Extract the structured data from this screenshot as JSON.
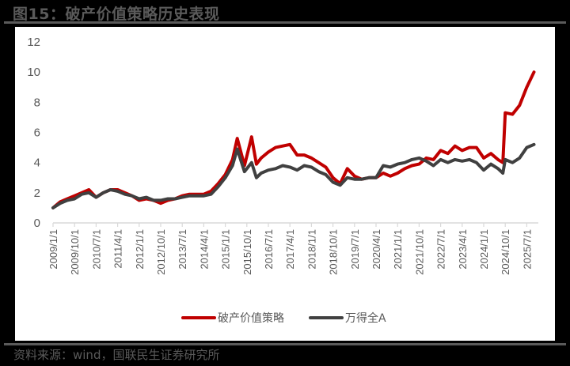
{
  "title": "图15：破产价值策略历史表现",
  "source": "资料来源：wind，国联民生证券研究所",
  "chart_data": {
    "type": "line",
    "title": "图15：破产价值策略历史表现",
    "xlabel": "",
    "ylabel": "",
    "ylim": [
      0,
      12
    ],
    "yticks": [
      0,
      2,
      4,
      6,
      8,
      10,
      12
    ],
    "grid": false,
    "legend_position": "bottom",
    "x_tick_labels": [
      "2009/1/1",
      "2009/10/1",
      "2010/7/1",
      "2011/4/1",
      "2012/1/1",
      "2012/10/1",
      "2013/7/1",
      "2014/4/1",
      "2015/1/1",
      "2015/10/1",
      "2016/7/1",
      "2017/4/1",
      "2018/1/1",
      "2018/10/1",
      "2019/7/1",
      "2020/4/1",
      "2021/1/1",
      "2021/10/1",
      "2022/7/1",
      "2023/4/1",
      "2024/1/1",
      "2024/10/1",
      "2025/7/1"
    ],
    "x": [
      "2009/1",
      "2009/4",
      "2009/7",
      "2009/10",
      "2010/1",
      "2010/4",
      "2010/7",
      "2010/10",
      "2011/1",
      "2011/4",
      "2011/7",
      "2011/10",
      "2012/1",
      "2012/4",
      "2012/7",
      "2012/10",
      "2013/1",
      "2013/4",
      "2013/7",
      "2013/10",
      "2014/1",
      "2014/4",
      "2014/7",
      "2014/10",
      "2015/1",
      "2015/4",
      "2015/6",
      "2015/9",
      "2015/12",
      "2016/2",
      "2016/4",
      "2016/7",
      "2016/10",
      "2017/1",
      "2017/4",
      "2017/7",
      "2017/10",
      "2018/1",
      "2018/4",
      "2018/7",
      "2018/10",
      "2019/1",
      "2019/4",
      "2019/7",
      "2019/10",
      "2020/1",
      "2020/4",
      "2020/7",
      "2020/10",
      "2021/1",
      "2021/4",
      "2021/7",
      "2021/10",
      "2022/1",
      "2022/4",
      "2022/7",
      "2022/10",
      "2023/1",
      "2023/4",
      "2023/7",
      "2023/10",
      "2024/1",
      "2024/4",
      "2024/7",
      "2024/9",
      "2024/10",
      "2025/1",
      "2025/4",
      "2025/7",
      "2025/10"
    ],
    "series": [
      {
        "name": "破产价值策略",
        "color": "#C00000",
        "values": [
          1.0,
          1.4,
          1.6,
          1.8,
          2.0,
          2.2,
          1.7,
          2.0,
          2.2,
          2.2,
          2.0,
          1.8,
          1.5,
          1.6,
          1.5,
          1.3,
          1.5,
          1.6,
          1.8,
          1.9,
          1.9,
          1.9,
          2.1,
          2.6,
          3.2,
          4.2,
          5.6,
          3.8,
          5.7,
          3.9,
          4.3,
          4.7,
          5.0,
          5.1,
          5.2,
          4.5,
          4.5,
          4.3,
          4.0,
          3.7,
          3.0,
          2.6,
          3.6,
          3.1,
          2.9,
          3.0,
          3.0,
          3.3,
          3.1,
          3.3,
          3.6,
          3.8,
          3.9,
          4.3,
          4.2,
          4.8,
          4.6,
          5.1,
          4.8,
          5.0,
          5.0,
          4.3,
          4.6,
          4.2,
          4.0,
          7.3,
          7.2,
          7.8,
          9.0,
          10.0
        ]
      },
      {
        "name": "万得全A",
        "color": "#404040",
        "values": [
          1.0,
          1.3,
          1.5,
          1.6,
          1.9,
          2.0,
          1.7,
          2.0,
          2.2,
          2.1,
          1.9,
          1.8,
          1.6,
          1.7,
          1.5,
          1.5,
          1.6,
          1.6,
          1.7,
          1.8,
          1.8,
          1.8,
          1.9,
          2.4,
          3.0,
          3.8,
          4.9,
          3.4,
          4.0,
          3.0,
          3.3,
          3.5,
          3.6,
          3.8,
          3.7,
          3.5,
          3.8,
          3.7,
          3.4,
          3.2,
          2.7,
          2.5,
          3.0,
          2.9,
          2.9,
          3.0,
          3.0,
          3.8,
          3.7,
          3.9,
          4.0,
          4.2,
          4.3,
          4.1,
          3.8,
          4.2,
          4.0,
          4.2,
          4.1,
          4.2,
          4.0,
          3.5,
          3.9,
          3.6,
          3.3,
          4.2,
          4.0,
          4.3,
          5.0,
          5.2
        ]
      }
    ]
  },
  "legend": {
    "items": [
      {
        "label": "破产价值策略",
        "color": "#C00000"
      },
      {
        "label": "万得全A",
        "color": "#404040"
      }
    ]
  }
}
